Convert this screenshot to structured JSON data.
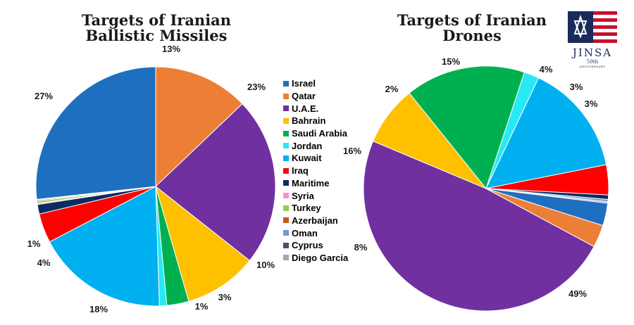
{
  "colors": {
    "Israel": "#1f6fc0",
    "Qatar": "#ec7f35",
    "U.A.E.": "#7030a0",
    "Bahrain": "#ffc000",
    "Saudi Arabia": "#00b050",
    "Jordan": "#27e9f4",
    "Kuwait": "#00b0f0",
    "Iraq": "#ff0000",
    "Maritime": "#0e2a62",
    "Syria": "#ff8fd0",
    "Turkey": "#92d050",
    "Azerbaijan": "#c55a11",
    "Oman": "#6f9ad6",
    "Cyprus": "#44546a",
    "Diego Garcia": "#a6a6a6"
  },
  "legend": {
    "entries": [
      "Israel",
      "Qatar",
      "U.A.E.",
      "Bahrain",
      "Saudi Arabia",
      "Jordan",
      "Kuwait",
      "Iraq",
      "Maritime",
      "Syria",
      "Turkey",
      "Azerbaijan",
      "Oman",
      "Cyprus",
      "Diego Garcia"
    ]
  },
  "logo": {
    "text": "JINSA",
    "anniversary_number": "50th",
    "anniversary_word": "ANNIVERSARY",
    "icon": "jinsa-flag-star-logo"
  },
  "chart_data": [
    {
      "type": "pie",
      "title": "Targets of Iranian Ballistic Missiles",
      "title_lines": [
        "Targets of Iranian",
        "Ballistic Missiles"
      ],
      "start_angle_deg": -90,
      "direction": "clockwise",
      "slices": [
        {
          "label": "Qatar",
          "value": 13,
          "display": "13%"
        },
        {
          "label": "U.A.E.",
          "value": 23,
          "display": "23%"
        },
        {
          "label": "Bahrain",
          "value": 10,
          "display": "10%"
        },
        {
          "label": "Saudi Arabia",
          "value": 3,
          "display": "3%"
        },
        {
          "label": "Jordan",
          "value": 1,
          "display": "1%"
        },
        {
          "label": "Kuwait",
          "value": 18,
          "display": "18%"
        },
        {
          "label": "Iraq",
          "value": 4,
          "display": "4%"
        },
        {
          "label": "Maritime",
          "value": 1.3,
          "display": "1%"
        },
        {
          "label": "Syria",
          "value": 0.15,
          "display": ""
        },
        {
          "label": "Turkey",
          "value": 0.3,
          "display": ""
        },
        {
          "label": "Azerbaijan",
          "value": 0.15,
          "display": ""
        },
        {
          "label": "Cyprus",
          "value": 0.1,
          "display": ""
        },
        {
          "label": "Israel",
          "value": 27,
          "display": "27%"
        }
      ]
    },
    {
      "type": "pie",
      "title": "Targets of Iranian Drones",
      "title_lines": [
        "Targets of Iranian",
        "Drones"
      ],
      "start_angle_deg": 28.3,
      "direction": "clockwise",
      "slices": [
        {
          "label": "U.A.E.",
          "value": 49,
          "display": "49%"
        },
        {
          "label": "Bahrain",
          "value": 8,
          "display": "8%"
        },
        {
          "label": "Saudi Arabia",
          "value": 16,
          "display": "16%"
        },
        {
          "label": "Jordan",
          "value": 2,
          "display": "2%"
        },
        {
          "label": "Kuwait",
          "value": 15,
          "display": "15%"
        },
        {
          "label": "Iraq",
          "value": 4,
          "display": "4%"
        },
        {
          "label": "Maritime",
          "value": 0.6,
          "display": ""
        },
        {
          "label": "Oman",
          "value": 0.3,
          "display": ""
        },
        {
          "label": "Diego Garcia",
          "value": 0.2,
          "display": ""
        },
        {
          "label": "Israel",
          "value": 3,
          "display": "3%"
        },
        {
          "label": "Qatar",
          "value": 3,
          "display": "3%"
        }
      ]
    }
  ]
}
